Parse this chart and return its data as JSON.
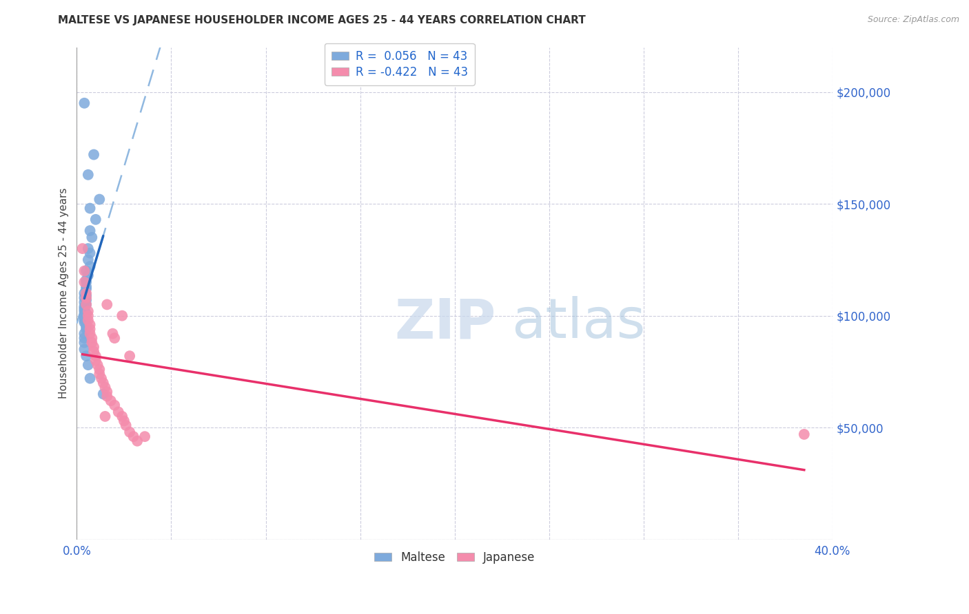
{
  "title": "MALTESE VS JAPANESE HOUSEHOLDER INCOME AGES 25 - 44 YEARS CORRELATION CHART",
  "source": "Source: ZipAtlas.com",
  "ylabel": "Householder Income Ages 25 - 44 years",
  "xlim": [
    0.0,
    0.4
  ],
  "ylim": [
    0,
    220000
  ],
  "yticks": [
    0,
    50000,
    100000,
    150000,
    200000
  ],
  "legend_r_maltese": "R =  0.056   N = 43",
  "legend_r_japanese": "R = -0.422   N = 43",
  "maltese_color": "#7eaadc",
  "japanese_color": "#f48cac",
  "maltese_line_color": "#2266bb",
  "japanese_line_color": "#e8306a",
  "dashed_line_color": "#90b8e0",
  "watermark_zip": "ZIP",
  "watermark_atlas": "atlas",
  "maltese_x": [
    0.004,
    0.009,
    0.006,
    0.012,
    0.007,
    0.01,
    0.007,
    0.008,
    0.006,
    0.007,
    0.006,
    0.007,
    0.005,
    0.006,
    0.005,
    0.005,
    0.005,
    0.005,
    0.004,
    0.005,
    0.004,
    0.005,
    0.004,
    0.005,
    0.004,
    0.004,
    0.004,
    0.005,
    0.004,
    0.004,
    0.004,
    0.004,
    0.005,
    0.005,
    0.005,
    0.004,
    0.004,
    0.004,
    0.004,
    0.005,
    0.006,
    0.007,
    0.014
  ],
  "maltese_y": [
    195000,
    172000,
    163000,
    152000,
    148000,
    143000,
    138000,
    135000,
    130000,
    128000,
    125000,
    122000,
    120000,
    118000,
    116000,
    115000,
    113000,
    112000,
    110000,
    109000,
    108000,
    107000,
    106000,
    105000,
    104000,
    103000,
    102000,
    101000,
    100000,
    99000,
    98000,
    97000,
    96000,
    95000,
    94000,
    92000,
    90000,
    88000,
    85000,
    82000,
    78000,
    72000,
    65000
  ],
  "japanese_x": [
    0.003,
    0.004,
    0.004,
    0.005,
    0.005,
    0.005,
    0.006,
    0.006,
    0.006,
    0.007,
    0.007,
    0.007,
    0.008,
    0.008,
    0.009,
    0.009,
    0.01,
    0.01,
    0.011,
    0.012,
    0.012,
    0.013,
    0.014,
    0.015,
    0.016,
    0.016,
    0.018,
    0.02,
    0.022,
    0.024,
    0.025,
    0.026,
    0.028,
    0.03,
    0.032,
    0.016,
    0.019,
    0.02,
    0.024,
    0.028,
    0.015,
    0.036,
    0.385
  ],
  "japanese_y": [
    130000,
    120000,
    115000,
    110000,
    108000,
    105000,
    102000,
    100000,
    98000,
    96000,
    94000,
    92000,
    90000,
    88000,
    86000,
    84000,
    82000,
    80000,
    78000,
    76000,
    74000,
    72000,
    70000,
    68000,
    66000,
    64000,
    62000,
    60000,
    57000,
    55000,
    53000,
    51000,
    48000,
    46000,
    44000,
    105000,
    92000,
    90000,
    100000,
    82000,
    55000,
    46000,
    47000
  ]
}
